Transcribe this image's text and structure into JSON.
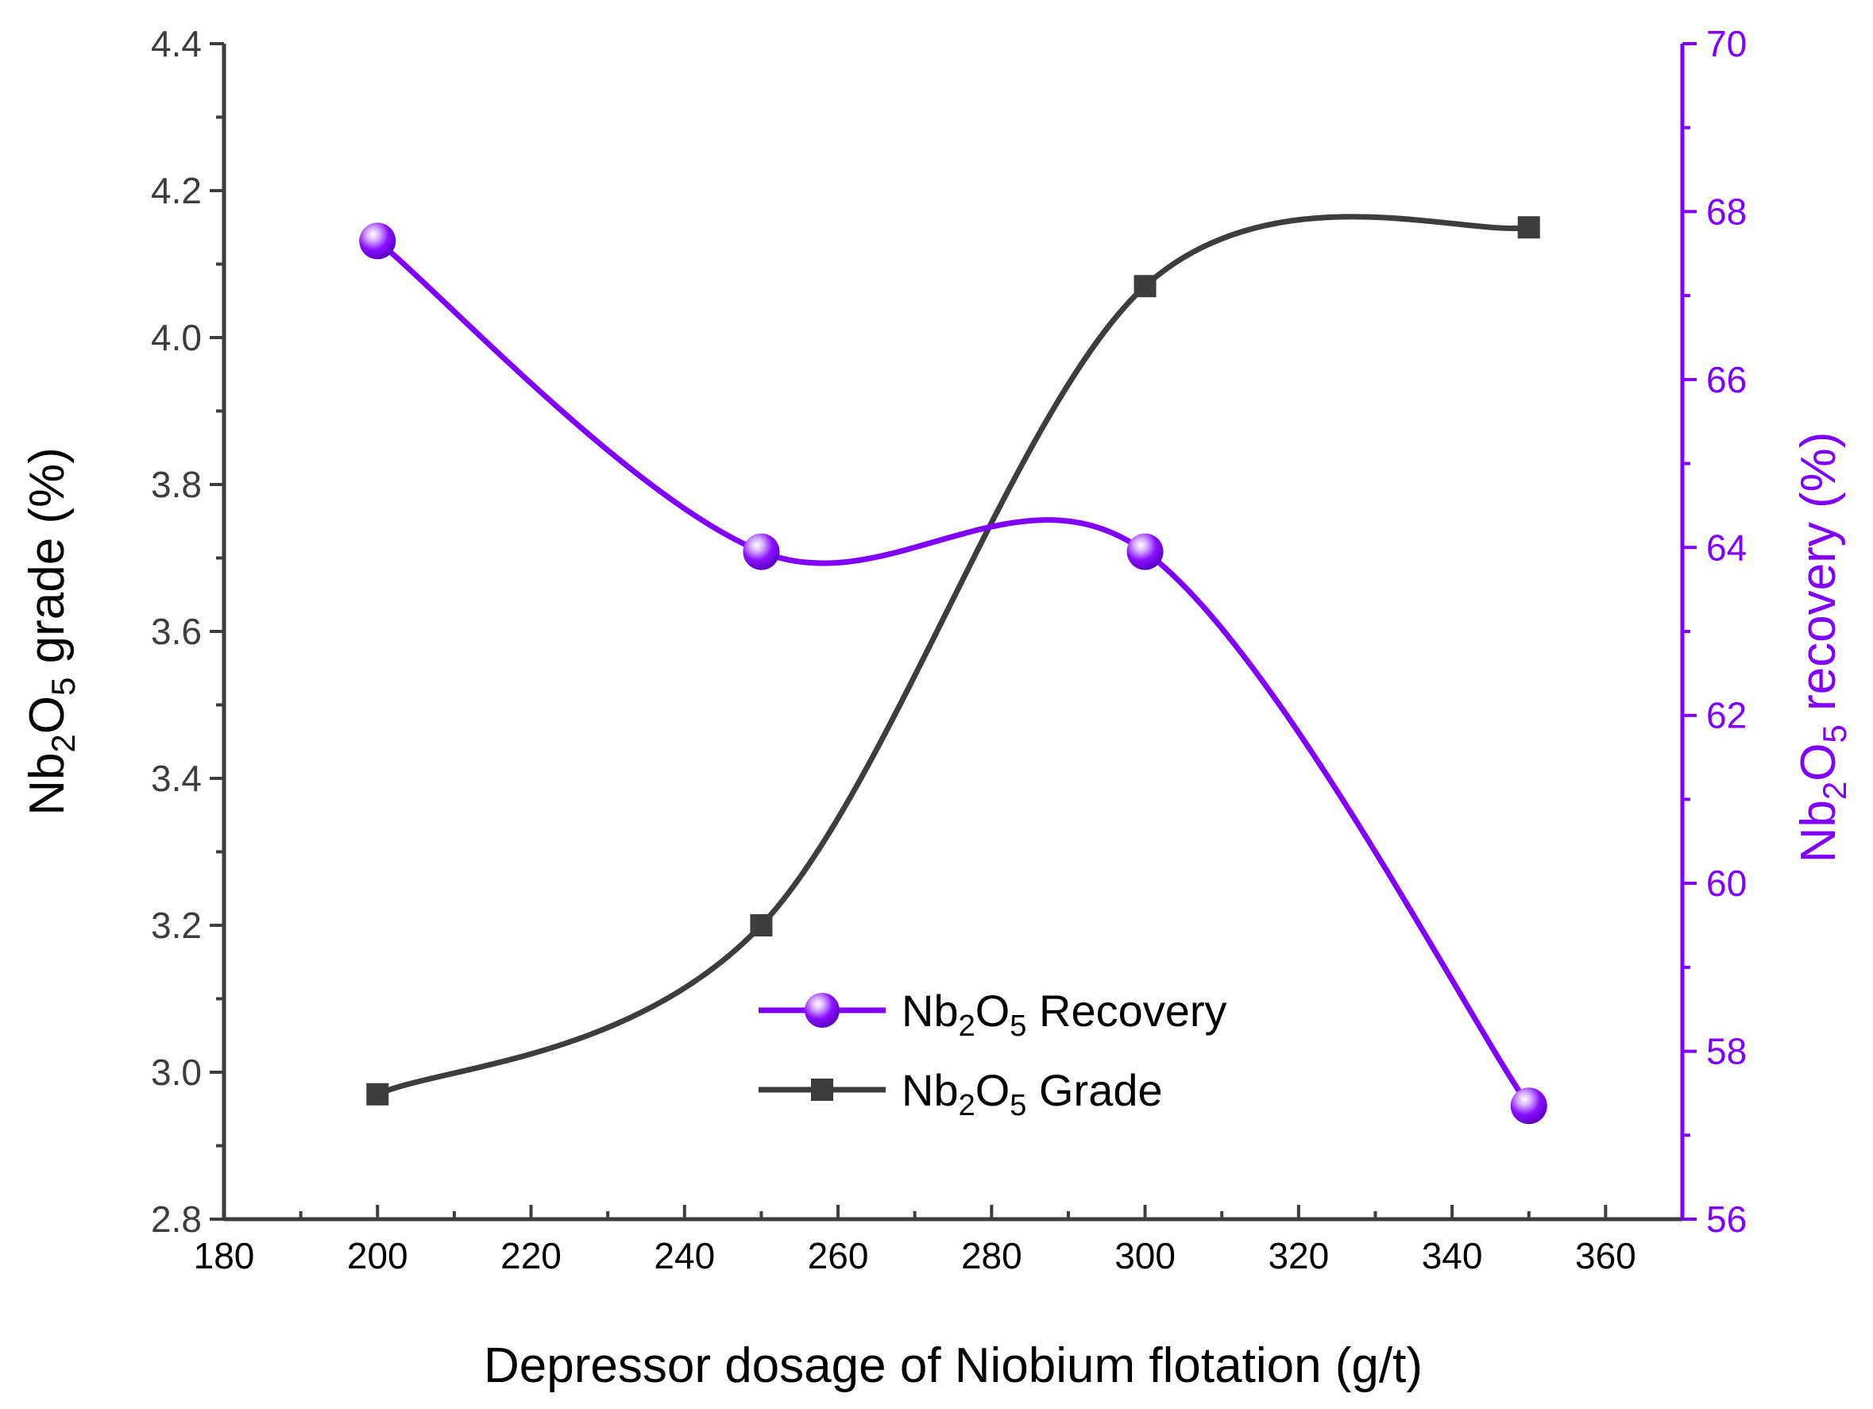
{
  "chart_data": {
    "type": "line",
    "xlabel": "Depressor dosage of Niobium flotation (g/t)",
    "ylabel_left": {
      "base": "Nb",
      "sub1": "2",
      "mid": "O",
      "sub2": "5",
      "rest": " grade (%)"
    },
    "ylabel_right": {
      "base": "Nb",
      "sub1": "2",
      "mid": "O",
      "sub2": "5",
      "rest": " recovery (%)"
    },
    "xlim": [
      180,
      370
    ],
    "xticks": [
      180,
      200,
      220,
      240,
      260,
      280,
      300,
      320,
      340,
      360
    ],
    "xtick_labels": [
      "180",
      "200",
      "220",
      "240",
      "260",
      "280",
      "300",
      "320",
      "340",
      "360"
    ],
    "ylim_left": [
      2.8,
      4.4
    ],
    "yticks_left": [
      2.8,
      3.0,
      3.2,
      3.4,
      3.6,
      3.8,
      4.0,
      4.2,
      4.4
    ],
    "ytick_labels_left": [
      "2.8",
      "3.0",
      "3.2",
      "3.4",
      "3.6",
      "3.8",
      "4.0",
      "4.2",
      "4.4"
    ],
    "ylim_right": [
      56,
      70
    ],
    "yticks_right": [
      56,
      58,
      60,
      62,
      64,
      66,
      68,
      70
    ],
    "ytick_labels_right": [
      "56",
      "58",
      "60",
      "62",
      "64",
      "66",
      "68",
      "70"
    ],
    "x": [
      200,
      250,
      300,
      350
    ],
    "series": [
      {
        "name": "Nb2O5 Recovery",
        "legend": {
          "base": "Nb",
          "sub1": "2",
          "mid": "O",
          "sub2": "5",
          "rest": " Recovery"
        },
        "axis": "right",
        "marker": "sphere",
        "color": "#8000ff",
        "values": [
          67.65,
          63.95,
          63.95,
          57.35
        ]
      },
      {
        "name": "Nb2O5 Grade",
        "legend": {
          "base": "Nb",
          "sub1": "2",
          "mid": "O",
          "sub2": "5",
          "rest": " Grade"
        },
        "axis": "left",
        "marker": "square",
        "color": "#3d3d3d",
        "values": [
          2.97,
          3.2,
          4.07,
          4.15
        ]
      }
    ],
    "colors": {
      "left_axis": "#3d3d3d",
      "right_axis": "#8000ff",
      "frame": "#3d3d3d"
    }
  }
}
